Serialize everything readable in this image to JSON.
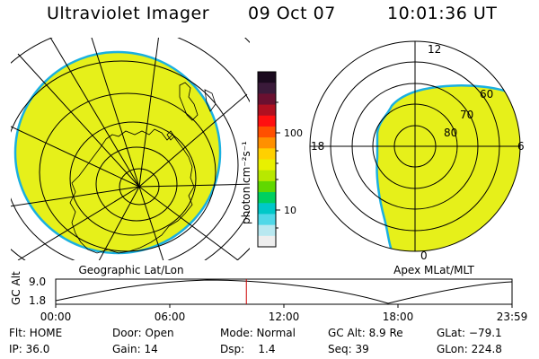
{
  "header": {
    "title": "Ultraviolet Imager",
    "date": "09 Oct 07",
    "time": "10:01:36 UT"
  },
  "left_panel": {
    "caption": "Geographic Lat/Lon"
  },
  "right_panel": {
    "caption": "Apex MLat/MLT",
    "mlt_labels": {
      "top": "12",
      "left": "18",
      "right": "6",
      "bottom": "0"
    },
    "lat_labels": [
      "60",
      "70",
      "80"
    ]
  },
  "colorbar": {
    "unit_label": "photon cm⁻²s⁻¹",
    "ticks": [
      "100",
      "10"
    ],
    "colors": [
      "#1a0a1e",
      "#3a1a3a",
      "#6a1030",
      "#b01020",
      "#ff1010",
      "#ff5000",
      "#ff9000",
      "#ffd000",
      "#e8f000",
      "#b8e800",
      "#60d800",
      "#00d060",
      "#00c8c8",
      "#50d8e8",
      "#b8e8f0",
      "#eeeeee"
    ]
  },
  "timeline": {
    "ylabel": "GC Alt",
    "ymax_label": "9.0",
    "ymin_label": "1.8",
    "xticks": [
      "00:00",
      "06:00",
      "12:00",
      "18:00",
      "23:59"
    ],
    "current_time_fraction": 0.4178
  },
  "info": {
    "row1": {
      "flt": "Flt: HOME",
      "door": "Door: Open",
      "mode": "Mode: Normal",
      "gcalt": "GC Alt: 8.9 Re",
      "glat": "GLat: −79.1"
    },
    "row2": {
      "ip": "IP: 36.0",
      "gain": "Gain: 14",
      "dsp": "Dsp:    1.4",
      "seq": "Seq: 39",
      "glon": "GLon: 224.8"
    }
  },
  "colors": {
    "image_fill": "#e6f01a",
    "image_edge": "#1ab0e0",
    "marker": "#cc0000"
  }
}
